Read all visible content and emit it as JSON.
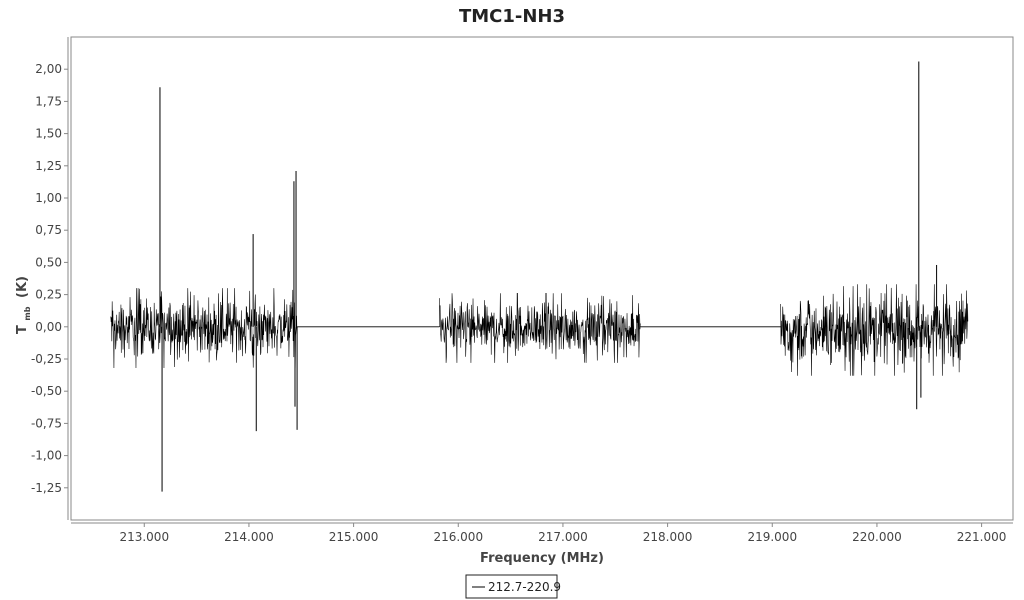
{
  "chart_data": {
    "type": "line",
    "title": "TMC1-NH3",
    "xlabel": "Frequency (MHz)",
    "ylabel_main": "T",
    "ylabel_sub": "mb",
    "ylabel_unit": "(K)",
    "xlim": [
      212.3,
      221.3
    ],
    "ylim": [
      -1.5,
      2.25
    ],
    "x_ticks": [
      213.0,
      214.0,
      215.0,
      216.0,
      217.0,
      218.0,
      219.0,
      220.0,
      221.0
    ],
    "x_tick_labels": [
      "213.000",
      "214.000",
      "215.000",
      "216.000",
      "217.000",
      "218.000",
      "219.000",
      "220.000",
      "221.000"
    ],
    "y_ticks": [
      2.0,
      1.75,
      1.5,
      1.25,
      1.0,
      0.75,
      0.5,
      0.25,
      0.0,
      -0.25,
      -0.5,
      -0.75,
      -1.0,
      -1.25
    ],
    "y_tick_labels": [
      "2,00",
      "1,75",
      "1,50",
      "1,25",
      "1,00",
      "0,75",
      "0,50",
      "0,25",
      "0,00",
      "-0,25",
      "-0,50",
      "-0,75",
      "-1,00",
      "-1,25"
    ],
    "grid": false,
    "legend_position": "bottom-center",
    "series": [
      {
        "name": "212.7-220.9",
        "color": "#000000",
        "bands": [
          {
            "x_start": 212.68,
            "x_end": 214.46,
            "noise": [
              -0.32,
              0.3
            ]
          },
          {
            "x_start": 215.82,
            "x_end": 217.74,
            "noise": [
              -0.28,
              0.26
            ]
          },
          {
            "x_start": 219.08,
            "x_end": 220.87,
            "noise": [
              -0.38,
              0.33
            ]
          }
        ],
        "baseline_gaps": [
          [
            214.46,
            215.82
          ],
          [
            217.74,
            219.08
          ]
        ],
        "spikes": [
          {
            "x": 213.15,
            "y": 1.86
          },
          {
            "x": 213.17,
            "y": -1.28
          },
          {
            "x": 214.04,
            "y": 0.72
          },
          {
            "x": 214.07,
            "y": -0.81
          },
          {
            "x": 214.43,
            "y": 1.13
          },
          {
            "x": 214.44,
            "y": -0.62
          },
          {
            "x": 214.45,
            "y": 1.21
          },
          {
            "x": 214.46,
            "y": -0.8
          },
          {
            "x": 220.38,
            "y": -0.64
          },
          {
            "x": 220.4,
            "y": 2.06
          },
          {
            "x": 220.42,
            "y": -0.55
          },
          {
            "x": 220.57,
            "y": 0.48
          }
        ]
      }
    ]
  }
}
